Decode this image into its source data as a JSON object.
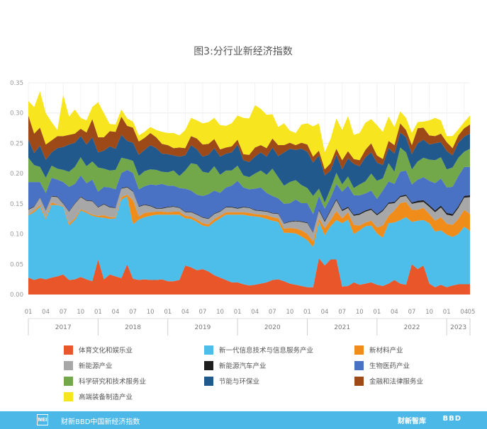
{
  "chart_data": {
    "type": "area",
    "stacked": true,
    "title": "图3:分行业新经济指数",
    "xlabel": "",
    "ylabel": "",
    "ylim": [
      0,
      0.35
    ],
    "yticks": [
      "0.00",
      "0.05",
      "0.10",
      "0.15",
      "0.20",
      "0.25",
      "0.30",
      "0.35"
    ],
    "grid": true,
    "legend_position": "bottom",
    "year_labels": [
      "2017",
      "2018",
      "2019",
      "2020",
      "2021",
      "2022",
      "2023"
    ],
    "month_tick_labels": [
      "01",
      "04",
      "07",
      "10",
      "01",
      "04",
      "07",
      "10",
      "01",
      "04",
      "07",
      "10",
      "01",
      "04",
      "07",
      "10",
      "01",
      "04",
      "07",
      "10",
      "01",
      "04",
      "07",
      "10",
      "01",
      "04",
      "05"
    ],
    "x": [
      "2017-01",
      "2017-02",
      "2017-03",
      "2017-04",
      "2017-05",
      "2017-06",
      "2017-07",
      "2017-08",
      "2017-09",
      "2017-10",
      "2017-11",
      "2017-12",
      "2018-01",
      "2018-02",
      "2018-03",
      "2018-04",
      "2018-05",
      "2018-06",
      "2018-07",
      "2018-08",
      "2018-09",
      "2018-10",
      "2018-11",
      "2018-12",
      "2019-01",
      "2019-02",
      "2019-03",
      "2019-04",
      "2019-05",
      "2019-06",
      "2019-07",
      "2019-08",
      "2019-09",
      "2019-10",
      "2019-11",
      "2019-12",
      "2020-01",
      "2020-02",
      "2020-03",
      "2020-04",
      "2020-05",
      "2020-06",
      "2020-07",
      "2020-08",
      "2020-09",
      "2020-10",
      "2020-11",
      "2020-12",
      "2021-01",
      "2021-02",
      "2021-03",
      "2021-04",
      "2021-05",
      "2021-06",
      "2021-07",
      "2021-08",
      "2021-09",
      "2021-10",
      "2021-11",
      "2021-12",
      "2022-01",
      "2022-02",
      "2022-03",
      "2022-04",
      "2022-05",
      "2022-06",
      "2022-07",
      "2022-08",
      "2022-09",
      "2022-10",
      "2022-11",
      "2022-12",
      "2023-01",
      "2023-02",
      "2023-03",
      "2023-04",
      "2023-05"
    ],
    "series": [
      {
        "name": "体育文化和娱乐业",
        "color": "#e8562a",
        "values": [
          0.028,
          0.024,
          0.027,
          0.025,
          0.028,
          0.03,
          0.033,
          0.024,
          0.025,
          0.029,
          0.025,
          0.022,
          0.058,
          0.025,
          0.033,
          0.03,
          0.027,
          0.05,
          0.026,
          0.024,
          0.025,
          0.024,
          0.024,
          0.025,
          0.022,
          0.022,
          0.024,
          0.048,
          0.045,
          0.04,
          0.042,
          0.038,
          0.032,
          0.028,
          0.024,
          0.02,
          0.02,
          0.017,
          0.015,
          0.016,
          0.018,
          0.02,
          0.024,
          0.025,
          0.022,
          0.018,
          0.016,
          0.014,
          0.012,
          0.012,
          0.06,
          0.048,
          0.058,
          0.058,
          0.013,
          0.014,
          0.02,
          0.016,
          0.018,
          0.02,
          0.016,
          0.014,
          0.018,
          0.024,
          0.018,
          0.016,
          0.05,
          0.042,
          0.048,
          0.018,
          0.012,
          0.016,
          0.012,
          0.015,
          0.017,
          0.017,
          0.017
        ]
      },
      {
        "name": "新一代信息技术与信息服务产业",
        "color": "#4dbde9",
        "values": [
          0.103,
          0.112,
          0.118,
          0.1,
          0.12,
          0.118,
          0.112,
          0.09,
          0.098,
          0.11,
          0.11,
          0.108,
          0.07,
          0.102,
          0.092,
          0.096,
          0.13,
          0.112,
          0.09,
          0.1,
          0.103,
          0.106,
          0.108,
          0.107,
          0.11,
          0.11,
          0.108,
          0.078,
          0.08,
          0.08,
          0.072,
          0.074,
          0.088,
          0.098,
          0.108,
          0.112,
          0.112,
          0.115,
          0.115,
          0.113,
          0.11,
          0.105,
          0.098,
          0.095,
          0.08,
          0.084,
          0.085,
          0.082,
          0.078,
          0.066,
          0.06,
          0.05,
          0.055,
          0.065,
          0.105,
          0.11,
          0.08,
          0.09,
          0.095,
          0.094,
          0.085,
          0.08,
          0.1,
          0.095,
          0.105,
          0.112,
          0.07,
          0.08,
          0.075,
          0.1,
          0.092,
          0.09,
          0.087,
          0.08,
          0.083,
          0.095,
          0.088
        ]
      },
      {
        "name": "新材料产业",
        "color": "#f08c1a",
        "values": [
          0.001,
          0.003,
          0.003,
          0.002,
          0.004,
          0.001,
          0.001,
          0.003,
          0.003,
          0.002,
          0.002,
          0.002,
          0.002,
          0.004,
          0.003,
          0.002,
          0.004,
          0.003,
          0.04,
          0.005,
          0.007,
          0.006,
          0.005,
          0.005,
          0.004,
          0.005,
          0.005,
          0.004,
          0.004,
          0.004,
          0.004,
          0.004,
          0.005,
          0.004,
          0.004,
          0.004,
          0.004,
          0.004,
          0.005,
          0.004,
          0.004,
          0.006,
          0.006,
          0.006,
          0.007,
          0.008,
          0.008,
          0.01,
          0.01,
          0.01,
          0.006,
          0.012,
          0.01,
          0.015,
          0.008,
          0.012,
          0.015,
          0.008,
          0.006,
          0.008,
          0.01,
          0.02,
          0.012,
          0.02,
          0.028,
          0.025,
          0.02,
          0.018,
          0.02,
          0.015,
          0.018,
          0.022,
          0.018,
          0.02,
          0.025,
          0.028,
          0.028
        ]
      },
      {
        "name": "新能源产业",
        "color": "#a7a7a7",
        "values": [
          0.008,
          0.006,
          0.012,
          0.012,
          0.01,
          0.012,
          0.004,
          0.02,
          0.024,
          0.02,
          0.018,
          0.022,
          0.014,
          0.018,
          0.016,
          0.015,
          0.014,
          0.012,
          0.014,
          0.016,
          0.013,
          0.01,
          0.005,
          0.005,
          0.008,
          0.008,
          0.006,
          0.006,
          0.007,
          0.008,
          0.009,
          0.009,
          0.008,
          0.007,
          0.008,
          0.008,
          0.006,
          0.008,
          0.008,
          0.006,
          0.006,
          0.006,
          0.006,
          0.007,
          0.008,
          0.01,
          0.012,
          0.014,
          0.018,
          0.014,
          0.013,
          0.01,
          0.015,
          0.018,
          0.012,
          0.007,
          0.015,
          0.018,
          0.018,
          0.018,
          0.02,
          0.024,
          0.02,
          0.012,
          0.01,
          0.01,
          0.01,
          0.012,
          0.01,
          0.012,
          0.014,
          0.016,
          0.015,
          0.015,
          0.018,
          0.02,
          0.028
        ]
      },
      {
        "name": "新能源汽车产业",
        "color": "#1e1e1e",
        "values": [
          0.001,
          0.001,
          0.001,
          0.001,
          0.001,
          0.001,
          0.001,
          0.001,
          0.001,
          0.001,
          0.001,
          0.001,
          0.001,
          0.001,
          0.001,
          0.001,
          0.001,
          0.001,
          0.001,
          0.001,
          0.001,
          0.001,
          0.001,
          0.001,
          0.001,
          0.001,
          0.001,
          0.001,
          0.001,
          0.001,
          0.001,
          0.001,
          0.001,
          0.001,
          0.001,
          0.001,
          0.001,
          0.001,
          0.001,
          0.001,
          0.001,
          0.001,
          0.001,
          0.001,
          0.001,
          0.001,
          0.001,
          0.001,
          0.001,
          0.001,
          0.002,
          0.002,
          0.002,
          0.002,
          0.002,
          0.002,
          0.002,
          0.002,
          0.002,
          0.002,
          0.002,
          0.002,
          0.002,
          0.002,
          0.002,
          0.002,
          0.002,
          0.003,
          0.003,
          0.003,
          0.003,
          0.003,
          0.003,
          0.003,
          0.003,
          0.003,
          0.003
        ]
      },
      {
        "name": "生物医药产业",
        "color": "#4a72c4",
        "values": [
          0.045,
          0.04,
          0.025,
          0.028,
          0.03,
          0.028,
          0.035,
          0.04,
          0.032,
          0.035,
          0.028,
          0.035,
          0.025,
          0.028,
          0.032,
          0.03,
          0.025,
          0.028,
          0.03,
          0.028,
          0.03,
          0.035,
          0.038,
          0.04,
          0.035,
          0.034,
          0.032,
          0.038,
          0.035,
          0.032,
          0.035,
          0.04,
          0.038,
          0.03,
          0.032,
          0.035,
          0.045,
          0.032,
          0.03,
          0.035,
          0.038,
          0.03,
          0.028,
          0.025,
          0.032,
          0.03,
          0.035,
          0.03,
          0.032,
          0.03,
          0.022,
          0.02,
          0.02,
          0.025,
          0.03,
          0.035,
          0.032,
          0.03,
          0.028,
          0.03,
          0.025,
          0.032,
          0.035,
          0.03,
          0.04,
          0.04,
          0.03,
          0.035,
          0.038,
          0.04,
          0.045,
          0.045,
          0.042,
          0.045,
          0.05,
          0.048,
          0.047
        ]
      },
      {
        "name": "科学研究和技术服务业",
        "color": "#72a84a",
        "values": [
          0.04,
          0.028,
          0.025,
          0.025,
          0.02,
          0.018,
          0.02,
          0.025,
          0.028,
          0.03,
          0.028,
          0.03,
          0.04,
          0.03,
          0.028,
          0.032,
          0.025,
          0.018,
          0.02,
          0.022,
          0.025,
          0.025,
          0.025,
          0.02,
          0.022,
          0.025,
          0.02,
          0.03,
          0.045,
          0.05,
          0.04,
          0.035,
          0.04,
          0.03,
          0.028,
          0.025,
          0.025,
          0.02,
          0.02,
          0.025,
          0.028,
          0.03,
          0.045,
          0.035,
          0.03,
          0.035,
          0.032,
          0.03,
          0.025,
          0.03,
          0.012,
          0.01,
          0.015,
          0.018,
          0.012,
          0.015,
          0.012,
          0.018,
          0.02,
          0.028,
          0.03,
          0.02,
          0.03,
          0.02,
          0.04,
          0.03,
          0.025,
          0.03,
          0.032,
          0.035,
          0.038,
          0.035,
          0.03,
          0.032,
          0.03,
          0.025,
          0.03
        ]
      },
      {
        "name": "节能与环保业",
        "color": "#22598d",
        "values": [
          0.03,
          0.02,
          0.035,
          0.03,
          0.022,
          0.034,
          0.038,
          0.045,
          0.04,
          0.035,
          0.036,
          0.04,
          0.025,
          0.03,
          0.04,
          0.035,
          0.038,
          0.03,
          0.03,
          0.035,
          0.035,
          0.04,
          0.036,
          0.03,
          0.03,
          0.025,
          0.032,
          0.025,
          0.03,
          0.025,
          0.025,
          0.03,
          0.03,
          0.03,
          0.028,
          0.03,
          0.035,
          0.025,
          0.025,
          0.028,
          0.03,
          0.03,
          0.035,
          0.035,
          0.055,
          0.055,
          0.05,
          0.06,
          0.06,
          0.055,
          0.055,
          0.045,
          0.03,
          0.03,
          0.025,
          0.03,
          0.04,
          0.03,
          0.04,
          0.035,
          0.03,
          0.022,
          0.025,
          0.03,
          0.025,
          0.025,
          0.025,
          0.03,
          0.03,
          0.025,
          0.028,
          0.025,
          0.03,
          0.02,
          0.025,
          0.025,
          0.025
        ]
      },
      {
        "name": "金融和法律服务业",
        "color": "#9d4a18",
        "values": [
          0.04,
          0.032,
          0.03,
          0.025,
          0.02,
          0.02,
          0.018,
          0.016,
          0.015,
          0.012,
          0.02,
          0.03,
          0.025,
          0.022,
          0.025,
          0.028,
          0.03,
          0.025,
          0.025,
          0.022,
          0.02,
          0.02,
          0.018,
          0.016,
          0.015,
          0.012,
          0.015,
          0.012,
          0.015,
          0.018,
          0.02,
          0.018,
          0.015,
          0.012,
          0.01,
          0.01,
          0.008,
          0.01,
          0.012,
          0.015,
          0.012,
          0.014,
          0.015,
          0.018,
          0.012,
          0.01,
          0.008,
          0.01,
          0.012,
          0.01,
          0.008,
          0.01,
          0.012,
          0.01,
          0.015,
          0.012,
          0.008,
          0.01,
          0.012,
          0.015,
          0.012,
          0.01,
          0.012,
          0.014,
          0.015,
          0.012,
          0.015,
          0.025,
          0.02,
          0.015,
          0.012,
          0.014,
          0.015,
          0.012,
          0.012,
          0.014,
          0.015
        ]
      },
      {
        "name": "高端装备制造产业",
        "color": "#f7e51f",
        "values": [
          0.024,
          0.044,
          0.06,
          0.052,
          0.03,
          0.01,
          0.068,
          0.03,
          0.04,
          0.018,
          0.02,
          0.02,
          0.058,
          0.04,
          0.012,
          0.012,
          0.012,
          0.012,
          0.01,
          0.01,
          0.01,
          0.01,
          0.012,
          0.02,
          0.02,
          0.025,
          0.02,
          0.03,
          0.03,
          0.03,
          0.035,
          0.036,
          0.035,
          0.04,
          0.036,
          0.038,
          0.04,
          0.06,
          0.06,
          0.07,
          0.06,
          0.055,
          0.04,
          0.03,
          0.036,
          0.02,
          0.02,
          0.03,
          0.035,
          0.05,
          0.045,
          0.028,
          0.04,
          0.05,
          0.05,
          0.058,
          0.04,
          0.045,
          0.045,
          0.04,
          0.05,
          0.045,
          0.04,
          0.03,
          0.02,
          0.02,
          0.02,
          0.01,
          0.01,
          0.025,
          0.03,
          0.022,
          0.01,
          0.02,
          0.01,
          0.01,
          0.015
        ]
      }
    ]
  },
  "footer": {
    "logo": "NEI",
    "text": "财新BBD中国新经济指数",
    "brand": "财新智库",
    "brand2": "BBD"
  }
}
